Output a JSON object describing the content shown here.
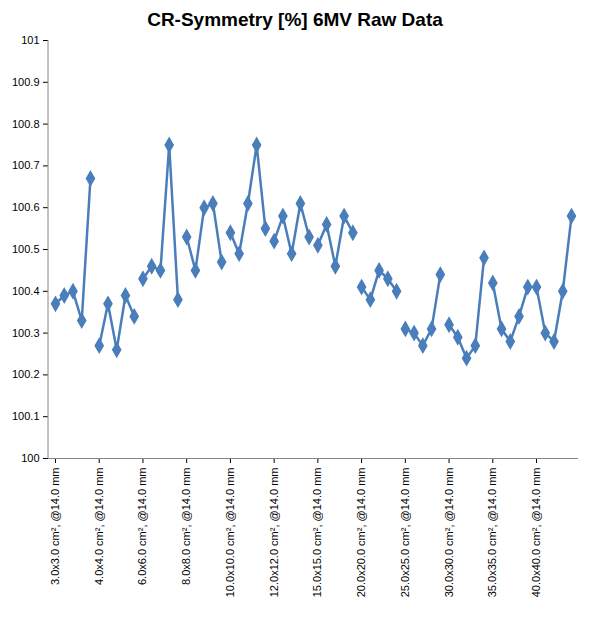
{
  "chart_data": {
    "type": "line",
    "title": "CR-Symmetry [%] 6MV Raw Data",
    "categories": [
      "3.0x3.0 cm², @14.0 mm",
      null,
      null,
      null,
      null,
      "4.0x4.0 cm², @14.0 mm",
      null,
      null,
      null,
      null,
      "6.0x6.0 cm², @14.0 mm",
      null,
      null,
      null,
      null,
      "8.0x8.0 cm², @14.0 mm",
      null,
      null,
      null,
      null,
      "10.0x10.0 cm², @14.0 mm",
      null,
      null,
      null,
      null,
      "12.0x12.0 cm², @14.0 mm",
      null,
      null,
      null,
      null,
      "15.0x15.0 cm², @14.0 mm",
      null,
      null,
      null,
      null,
      "20.0x20.0 cm², @14.0 mm",
      null,
      null,
      null,
      null,
      "25.0x25.0 cm², @14.0 mm",
      null,
      null,
      null,
      null,
      "30.0x30.0 cm², @14.0 mm",
      null,
      null,
      null,
      null,
      "35.0x35.0 cm², @14.0 mm",
      null,
      null,
      null,
      null,
      "40.0x40.0 cm², @14.0 mm",
      null,
      null,
      null,
      null
    ],
    "values": [
      100.37,
      100.39,
      100.4,
      100.33,
      100.67,
      100.27,
      100.37,
      100.26,
      100.39,
      100.34,
      100.43,
      100.46,
      100.45,
      100.75,
      100.38,
      100.53,
      100.45,
      100.6,
      100.61,
      100.47,
      100.54,
      100.49,
      100.61,
      100.75,
      100.55,
      100.52,
      100.58,
      100.49,
      100.61,
      100.53,
      100.51,
      100.56,
      100.46,
      100.58,
      100.54,
      100.41,
      100.38,
      100.45,
      100.43,
      100.4,
      100.31,
      100.3,
      100.27,
      100.31,
      100.44,
      100.32,
      100.29,
      100.24,
      100.27,
      100.48,
      100.42,
      100.31,
      100.28,
      100.34,
      100.41,
      100.41,
      100.3,
      100.28,
      100.4,
      100.58
    ],
    "color": "#4a7ebb",
    "marker": "diamond",
    "ylim": [
      100,
      101
    ],
    "yticks": [
      100,
      100.1,
      100.2,
      100.3,
      100.4,
      100.5,
      100.6,
      100.7,
      100.8,
      100.9,
      101
    ],
    "grid": false
  }
}
